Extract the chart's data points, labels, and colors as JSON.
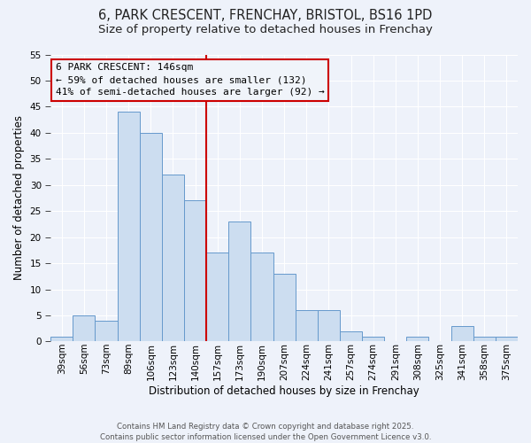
{
  "title": "6, PARK CRESCENT, FRENCHAY, BRISTOL, BS16 1PD",
  "subtitle": "Size of property relative to detached houses in Frenchay",
  "xlabel": "Distribution of detached houses by size in Frenchay",
  "ylabel": "Number of detached properties",
  "bar_labels": [
    "39sqm",
    "56sqm",
    "73sqm",
    "89sqm",
    "106sqm",
    "123sqm",
    "140sqm",
    "157sqm",
    "173sqm",
    "190sqm",
    "207sqm",
    "224sqm",
    "241sqm",
    "257sqm",
    "274sqm",
    "291sqm",
    "308sqm",
    "325sqm",
    "341sqm",
    "358sqm",
    "375sqm"
  ],
  "bar_values": [
    1,
    5,
    4,
    44,
    40,
    32,
    27,
    17,
    23,
    17,
    13,
    6,
    6,
    2,
    1,
    0,
    1,
    0,
    3,
    1,
    1
  ],
  "bar_color": "#ccddf0",
  "bar_edgecolor": "#6699cc",
  "vline_color": "#cc0000",
  "vline_index": 6.5,
  "annotation_title": "6 PARK CRESCENT: 146sqm",
  "annotation_line1": "← 59% of detached houses are smaller (132)",
  "annotation_line2": "41% of semi-detached houses are larger (92) →",
  "annotation_box_edgecolor": "#cc0000",
  "annotation_box_facecolor": "#f0f4fa",
  "ylim": [
    0,
    55
  ],
  "yticks": [
    0,
    5,
    10,
    15,
    20,
    25,
    30,
    35,
    40,
    45,
    50,
    55
  ],
  "background_color": "#eef2fa",
  "grid_color": "#ffffff",
  "footer1": "Contains HM Land Registry data © Crown copyright and database right 2025.",
  "footer2": "Contains public sector information licensed under the Open Government Licence v3.0.",
  "title_fontsize": 10.5,
  "subtitle_fontsize": 9.5,
  "xlabel_fontsize": 8.5,
  "ylabel_fontsize": 8.5,
  "annotation_fontsize": 8.0,
  "tick_fontsize": 7.5,
  "footer_fontsize": 6.2
}
